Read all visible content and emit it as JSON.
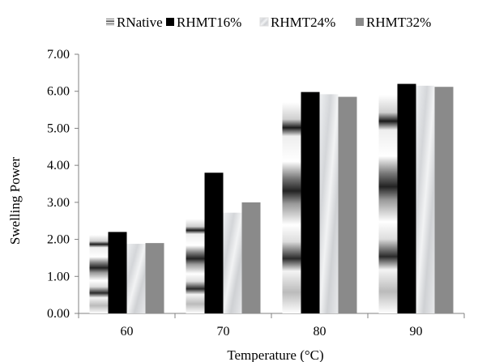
{
  "chart_data": {
    "type": "bar",
    "categories": [
      "60",
      "70",
      "80",
      "90"
    ],
    "series": [
      {
        "name": "RNative",
        "values": [
          2.12,
          2.55,
          5.7,
          5.9
        ],
        "pattern": "banded",
        "color": "#9a9a9a"
      },
      {
        "name": "RHMT16%",
        "values": [
          2.2,
          3.8,
          5.98,
          6.2
        ],
        "pattern": "solid",
        "color": "#000000"
      },
      {
        "name": "RHMT24%",
        "values": [
          1.88,
          2.72,
          5.92,
          6.15
        ],
        "pattern": "marble",
        "color": "#e2e3e5"
      },
      {
        "name": "RHMT32%",
        "values": [
          1.9,
          3.0,
          5.85,
          6.12
        ],
        "pattern": "solid",
        "color": "#8a8a8a"
      }
    ],
    "xlabel": "Temperature (°C)",
    "ylabel": "Swelling Power",
    "ylim": [
      0,
      7
    ],
    "yticks": [
      "0.00",
      "1.00",
      "2.00",
      "3.00",
      "4.00",
      "5.00",
      "6.00",
      "7.00"
    ],
    "grid": false,
    "legend_position": "top"
  }
}
